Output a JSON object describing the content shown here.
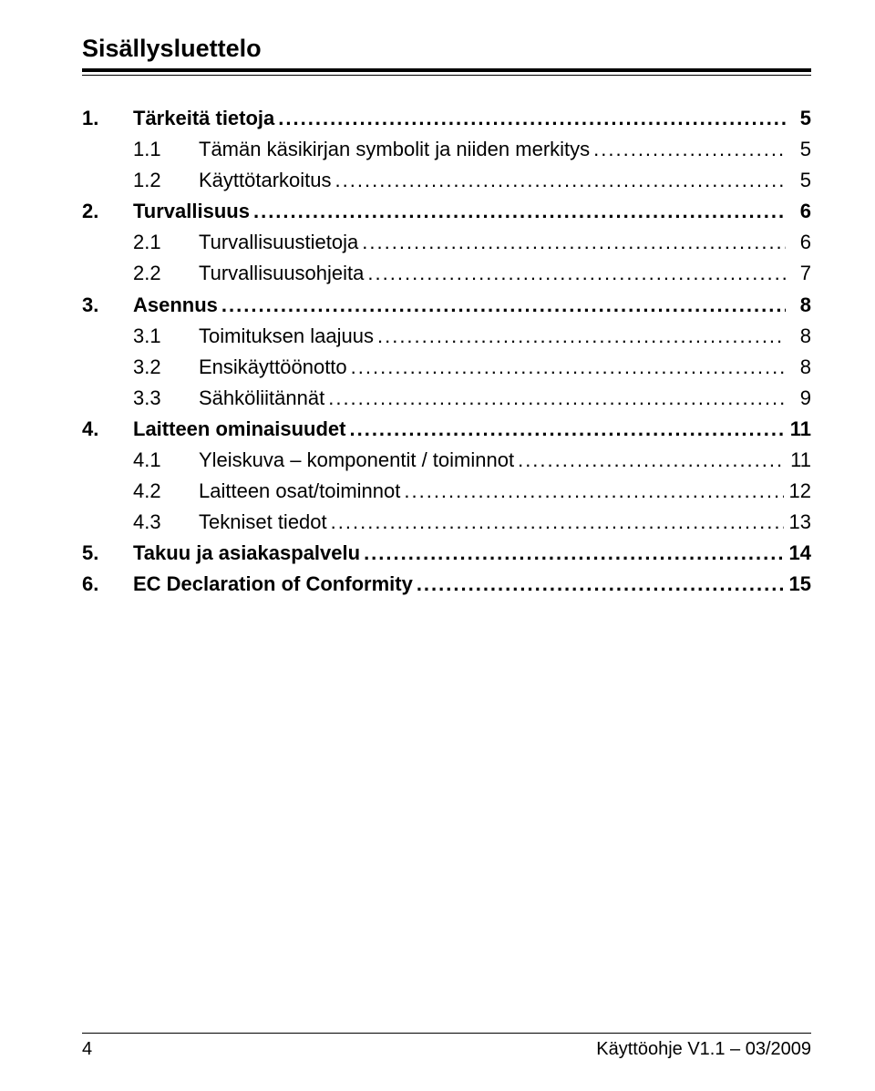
{
  "header": {
    "title": "Sisällysluettelo"
  },
  "toc": [
    {
      "level": 1,
      "num": "1.",
      "text": "Tärkeitä tietoja",
      "page": "5"
    },
    {
      "level": 2,
      "num": "1.1",
      "text": "Tämän käsikirjan symbolit ja niiden merkitys",
      "page": "5"
    },
    {
      "level": 2,
      "num": "1.2",
      "text": "Käyttötarkoitus",
      "page": "5"
    },
    {
      "level": 1,
      "num": "2.",
      "text": "Turvallisuus",
      "page": "6"
    },
    {
      "level": 2,
      "num": "2.1",
      "text": "Turvallisuustietoja",
      "page": "6"
    },
    {
      "level": 2,
      "num": "2.2",
      "text": "Turvallisuusohjeita",
      "page": "7"
    },
    {
      "level": 1,
      "num": "3.",
      "text": "Asennus",
      "page": "8"
    },
    {
      "level": 2,
      "num": "3.1",
      "text": "Toimituksen laajuus",
      "page": "8"
    },
    {
      "level": 2,
      "num": "3.2",
      "text": "Ensikäyttöönotto",
      "page": "8"
    },
    {
      "level": 2,
      "num": "3.3",
      "text": "Sähköliitännät",
      "page": "9"
    },
    {
      "level": 1,
      "num": "4.",
      "text": "Laitteen ominaisuudet",
      "page": "11"
    },
    {
      "level": 2,
      "num": "4.1",
      "text": "Yleiskuva – komponentit / toiminnot",
      "page": "11"
    },
    {
      "level": 2,
      "num": "4.2",
      "text": "Laitteen osat/toiminnot",
      "page": "12"
    },
    {
      "level": 2,
      "num": "4.3",
      "text": "Tekniset tiedot",
      "page": "13"
    },
    {
      "level": 1,
      "num": "5.",
      "text": "Takuu ja asiakaspalvelu",
      "page": "14"
    },
    {
      "level": 1,
      "num": "6.",
      "text": "EC Declaration of Conformity",
      "page": "15"
    }
  ],
  "footer": {
    "page_number": "4",
    "version": "Käyttöohje V1.1 – 03/2009"
  }
}
